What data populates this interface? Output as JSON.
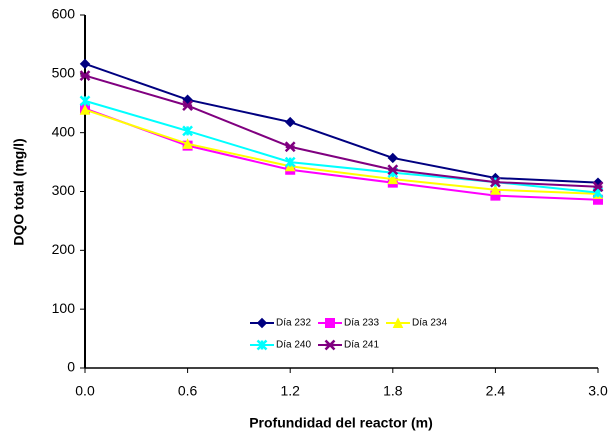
{
  "chart_data": {
    "type": "line",
    "x_label": "Profundidad del reactor (m)",
    "y_label": "DQO total (mg/l)",
    "x": [
      0,
      0.6,
      1.2,
      1.8,
      2.4,
      3.0
    ],
    "xlim": [
      0,
      3.0
    ],
    "xticks": [
      {
        "value": 0,
        "label": "0.0"
      },
      0.6,
      1.2,
      1.8,
      2.4,
      {
        "value": 3.0,
        "label": "3.0"
      }
    ],
    "ylim": [
      0,
      600
    ],
    "yticks": [
      0,
      100,
      200,
      300,
      400,
      500,
      600
    ],
    "grid": false,
    "legend": "bottom",
    "series": [
      {
        "name": "Día 232",
        "color": "#000080",
        "marker": "diamond",
        "values": [
          517,
          456,
          418,
          357,
          323,
          315
        ]
      },
      {
        "name": "Día 233",
        "color": "#ff00ff",
        "marker": "square",
        "values": [
          441,
          378,
          337,
          315,
          293,
          286
        ]
      },
      {
        "name": "Día 234",
        "color": "#ffff00",
        "marker": "triangle",
        "values": [
          439,
          381,
          343,
          321,
          303,
          296
        ]
      },
      {
        "name": "Día 240",
        "color": "#00ffff",
        "marker": "x",
        "values": [
          454,
          403,
          350,
          332,
          316,
          298
        ]
      },
      {
        "name": "Día 241",
        "color": "#800080",
        "marker": "star",
        "values": [
          497,
          446,
          376,
          337,
          316,
          308
        ]
      }
    ]
  }
}
